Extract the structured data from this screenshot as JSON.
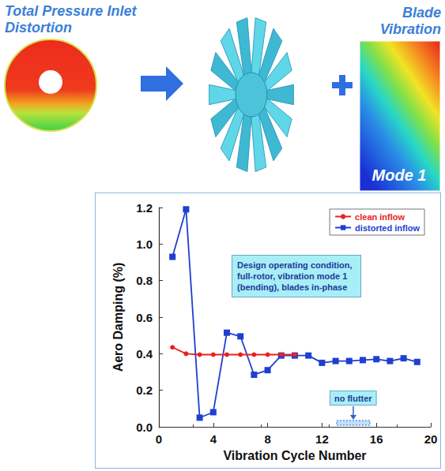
{
  "chart_data": {
    "type": "line",
    "x_label": "Vibration Cycle Number",
    "y_label": "Aero Damping (%)",
    "xlim": [
      0,
      20
    ],
    "xticks": [
      0,
      4,
      8,
      12,
      16,
      20
    ],
    "ylim": [
      0,
      1.2
    ],
    "yticks": [
      {
        "value": 0,
        "label": "0.0"
      },
      0.2,
      0.4,
      0.6,
      0.8,
      {
        "value": 1,
        "label": "1.0"
      },
      1.2
    ],
    "grid": false,
    "legend": "upper right",
    "series": [
      {
        "name": "clean inflow",
        "color": "#e8231c",
        "marker": "circle",
        "x": [
          1,
          2,
          3,
          4,
          5,
          6,
          7,
          8,
          9,
          10
        ],
        "values": [
          0.435,
          0.4,
          0.395,
          0.395,
          0.395,
          0.395,
          0.395,
          0.395,
          0.395,
          0.395
        ]
      },
      {
        "name": "distorted inflow",
        "color": "#1f3fd1",
        "marker": "square",
        "x": [
          1,
          2,
          3,
          4,
          5,
          6,
          7,
          8,
          9,
          10,
          11,
          12,
          13,
          14,
          15,
          16,
          17,
          18,
          19
        ],
        "values": [
          0.93,
          1.19,
          0.05,
          0.08,
          0.515,
          0.495,
          0.285,
          0.31,
          0.39,
          0.39,
          0.39,
          0.35,
          0.36,
          0.36,
          0.365,
          0.37,
          0.36,
          0.375,
          0.355
        ]
      }
    ],
    "annotations": [
      "Design operating condition, full-rotor, vibration mode 1 (bending), blades in-phase",
      "no flutter"
    ]
  },
  "illustration": {
    "left_title": "Total Pressure Inlet Distortion",
    "right_title": "Blade Vibration",
    "right_inner": "Mode 1"
  }
}
